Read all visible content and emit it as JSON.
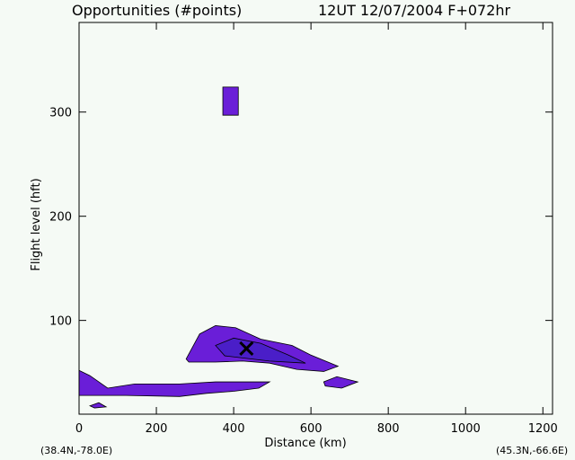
{
  "chart_data": {
    "type": "contour",
    "title": "Opportunities  (#points)",
    "subtitle": "12UT 12/07/2004  F+072hr",
    "x_label": "Distance  (km)",
    "y_label": "Flight level  (hft)",
    "left_corner": "(38.4N,-78.0E)",
    "right_corner": "(45.3N,-66.6E)",
    "xlim": [
      0,
      1225
    ],
    "ylim": [
      10,
      386
    ],
    "xticks": [
      0,
      200,
      400,
      600,
      800,
      1000,
      1200
    ],
    "yticks": [
      100,
      200,
      300
    ],
    "regions": [
      {
        "color": "#6a1ed8",
        "x": [
          372,
          412,
          412,
          372
        ],
        "y": [
          324,
          324,
          297,
          297
        ]
      },
      {
        "color": "#6a1ed8",
        "x": [
          277,
          312,
          353,
          405,
          470,
          551,
          598,
          670,
          633,
          563,
          493,
          423,
          353,
          284
        ],
        "y": [
          63,
          87,
          95,
          93,
          82,
          76,
          67,
          56,
          51,
          53,
          59,
          61,
          60,
          60
        ]
      },
      {
        "color": "#4a1ec8",
        "x": [
          353,
          400,
          470,
          540,
          586,
          493,
          377
        ],
        "y": [
          76,
          83,
          78,
          67,
          59,
          61,
          66
        ]
      },
      {
        "color": "#6a1ed8",
        "x": [
          0,
          28,
          74,
          144,
          260,
          353,
          493,
          465,
          400,
          330,
          260,
          121,
          28,
          0
        ],
        "y": [
          52,
          47,
          35,
          39,
          39,
          41,
          41,
          35,
          32,
          30,
          27,
          28,
          28,
          28
        ]
      },
      {
        "color": "#6a1ed8",
        "x": [
          633,
          667,
          721,
          679,
          637
        ],
        "y": [
          41,
          46,
          41,
          35,
          37
        ]
      },
      {
        "color": "#6a1ed8",
        "x": [
          28,
          51,
          70,
          40
        ],
        "y": [
          18,
          21,
          17,
          16
        ]
      }
    ],
    "marker": {
      "x": 433,
      "y": 73
    }
  }
}
